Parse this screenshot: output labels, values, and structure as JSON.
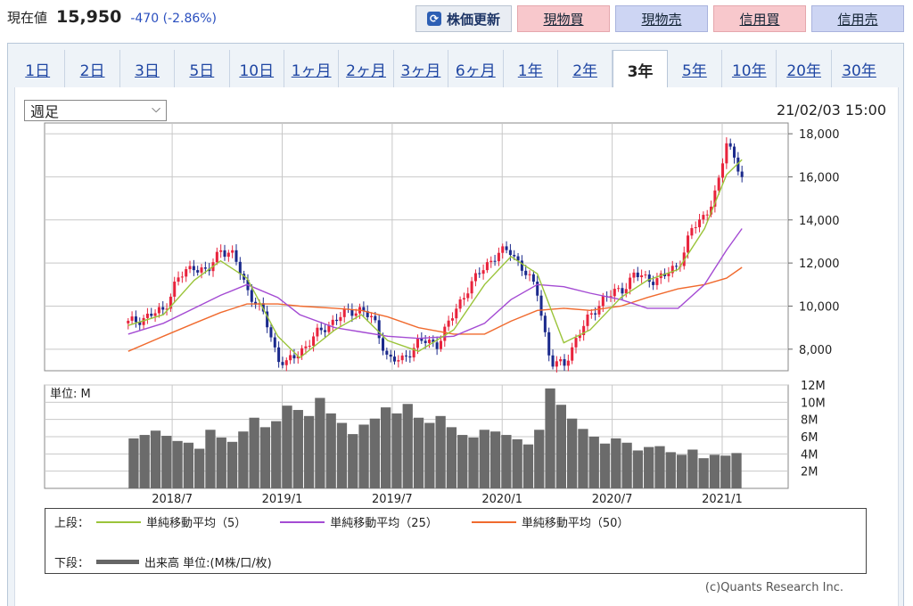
{
  "quote": {
    "label": "現在値",
    "price": "15,950",
    "change": "-470 (-2.86%)"
  },
  "buttons": {
    "refresh": "株価更新",
    "buy_cash": "現物買",
    "sell_cash": "現物売",
    "buy_margin": "信用買",
    "sell_margin": "信用売"
  },
  "tabs": [
    "1日",
    "2日",
    "3日",
    "5日",
    "10日",
    "1ヶ月",
    "2ヶ月",
    "3ヶ月",
    "6ヶ月",
    "1年",
    "2年",
    "3年",
    "5年",
    "10年",
    "20年",
    "30年"
  ],
  "active_tab": "3年",
  "period_select": {
    "value": "週足"
  },
  "timestamp": "21/02/03 15:00",
  "colors": {
    "up": "#e8233c",
    "down": "#1b2a8c",
    "ma5": "#9bc43a",
    "ma25": "#a44bd3",
    "ma50": "#f06a2e",
    "volume": "#6b6b6b",
    "grid": "#c8c8c8"
  },
  "legend": {
    "upper_label": "上段：",
    "lower_label": "下段：",
    "ma5": "単純移動平均（5）",
    "ma25": "単純移動平均（25）",
    "ma50": "単純移動平均（50）",
    "volume": "出来高 単位:(M株/口/枚)"
  },
  "copyright": "(c)Quants Research Inc.",
  "chart_data": {
    "type": "candlestick",
    "price_axis": {
      "ticks": [
        "18,000",
        "16,000",
        "14,000",
        "12,000",
        "10,000",
        "8,000"
      ],
      "range": [
        7000,
        18500
      ]
    },
    "volume_axis": {
      "unit_label": "単位: M",
      "ticks": [
        "12M",
        "10M",
        "8M",
        "6M",
        "4M",
        "2M"
      ],
      "range": [
        0,
        12
      ]
    },
    "x_ticks": [
      "2018/7",
      "2019/1",
      "2019/7",
      "2020/1",
      "2020/7",
      "2021/1"
    ],
    "close_series": [
      [
        2018.3,
        9200
      ],
      [
        2018.38,
        9500
      ],
      [
        2018.46,
        9800
      ],
      [
        2018.52,
        11200
      ],
      [
        2018.6,
        11900
      ],
      [
        2018.66,
        11500
      ],
      [
        2018.72,
        12700
      ],
      [
        2018.78,
        12300
      ],
      [
        2018.84,
        10800
      ],
      [
        2018.92,
        9500
      ],
      [
        2018.98,
        7600
      ],
      [
        2019.02,
        7300
      ],
      [
        2019.08,
        7900
      ],
      [
        2019.16,
        8700
      ],
      [
        2019.24,
        9400
      ],
      [
        2019.3,
        9700
      ],
      [
        2019.36,
        9900
      ],
      [
        2019.42,
        9200
      ],
      [
        2019.48,
        7600
      ],
      [
        2019.54,
        7400
      ],
      [
        2019.62,
        8400
      ],
      [
        2019.7,
        8200
      ],
      [
        2019.78,
        9600
      ],
      [
        2019.84,
        10800
      ],
      [
        2019.92,
        11800
      ],
      [
        2019.98,
        12500
      ],
      [
        2020.04,
        12500
      ],
      [
        2020.1,
        11700
      ],
      [
        2020.16,
        10600
      ],
      [
        2020.22,
        7400
      ],
      [
        2020.28,
        7200
      ],
      [
        2020.34,
        8600
      ],
      [
        2020.4,
        9500
      ],
      [
        2020.46,
        10400
      ],
      [
        2020.54,
        10700
      ],
      [
        2020.6,
        11500
      ],
      [
        2020.66,
        11200
      ],
      [
        2020.74,
        11400
      ],
      [
        2020.8,
        11900
      ],
      [
        2020.86,
        13500
      ],
      [
        2020.92,
        14200
      ],
      [
        2020.98,
        15500
      ],
      [
        2021.02,
        17600
      ],
      [
        2021.06,
        16900
      ],
      [
        2021.09,
        15950
      ]
    ],
    "ma5": [
      [
        2018.3,
        9100
      ],
      [
        2018.46,
        9600
      ],
      [
        2018.6,
        11200
      ],
      [
        2018.72,
        12100
      ],
      [
        2018.84,
        11300
      ],
      [
        2018.98,
        8600
      ],
      [
        2019.08,
        7600
      ],
      [
        2019.24,
        8900
      ],
      [
        2019.36,
        9600
      ],
      [
        2019.48,
        8400
      ],
      [
        2019.62,
        7900
      ],
      [
        2019.78,
        8900
      ],
      [
        2019.92,
        11000
      ],
      [
        2020.04,
        12300
      ],
      [
        2020.16,
        11500
      ],
      [
        2020.28,
        8300
      ],
      [
        2020.4,
        8900
      ],
      [
        2020.54,
        10400
      ],
      [
        2020.66,
        11200
      ],
      [
        2020.8,
        11700
      ],
      [
        2020.92,
        13600
      ],
      [
        2021.02,
        16100
      ],
      [
        2021.09,
        16800
      ]
    ],
    "ma25": [
      [
        2018.3,
        8700
      ],
      [
        2018.46,
        9200
      ],
      [
        2018.6,
        9900
      ],
      [
        2018.72,
        10500
      ],
      [
        2018.84,
        11000
      ],
      [
        2018.98,
        10400
      ],
      [
        2019.08,
        9600
      ],
      [
        2019.24,
        9000
      ],
      [
        2019.36,
        8800
      ],
      [
        2019.48,
        8600
      ],
      [
        2019.62,
        8500
      ],
      [
        2019.78,
        8600
      ],
      [
        2019.92,
        9200
      ],
      [
        2020.04,
        10300
      ],
      [
        2020.16,
        11000
      ],
      [
        2020.28,
        10900
      ],
      [
        2020.4,
        10600
      ],
      [
        2020.54,
        10300
      ],
      [
        2020.66,
        9900
      ],
      [
        2020.8,
        9900
      ],
      [
        2020.92,
        11000
      ],
      [
        2021.02,
        12600
      ],
      [
        2021.09,
        13600
      ]
    ],
    "ma50": [
      [
        2018.3,
        7900
      ],
      [
        2018.46,
        8600
      ],
      [
        2018.6,
        9200
      ],
      [
        2018.72,
        9700
      ],
      [
        2018.84,
        10100
      ],
      [
        2018.98,
        10100
      ],
      [
        2019.08,
        10000
      ],
      [
        2019.24,
        9900
      ],
      [
        2019.36,
        9800
      ],
      [
        2019.48,
        9500
      ],
      [
        2019.62,
        9000
      ],
      [
        2019.78,
        8700
      ],
      [
        2019.92,
        8700
      ],
      [
        2020.04,
        9300
      ],
      [
        2020.16,
        9800
      ],
      [
        2020.28,
        9900
      ],
      [
        2020.4,
        9800
      ],
      [
        2020.54,
        10000
      ],
      [
        2020.66,
        10400
      ],
      [
        2020.8,
        10800
      ],
      [
        2020.92,
        11000
      ],
      [
        2021.02,
        11300
      ],
      [
        2021.09,
        11800
      ]
    ],
    "volume": [
      5.8,
      6.2,
      6.7,
      6.1,
      5.5,
      5.3,
      4.6,
      6.8,
      5.9,
      5.4,
      6.6,
      8.2,
      7.1,
      7.8,
      9.6,
      9.1,
      8.4,
      10.5,
      8.7,
      7.6,
      6.3,
      7.4,
      8.1,
      9.4,
      8.7,
      9.8,
      8.2,
      7.6,
      8.4,
      7.1,
      6.2,
      5.9,
      6.8,
      6.6,
      6.2,
      5.7,
      5.1,
      6.8,
      11.6,
      9.7,
      8.1,
      6.9,
      6.0,
      5.2,
      5.8,
      5.3,
      4.4,
      4.8,
      4.9,
      4.2,
      3.9,
      4.5,
      3.5,
      3.9,
      3.8,
      4.1
    ]
  }
}
